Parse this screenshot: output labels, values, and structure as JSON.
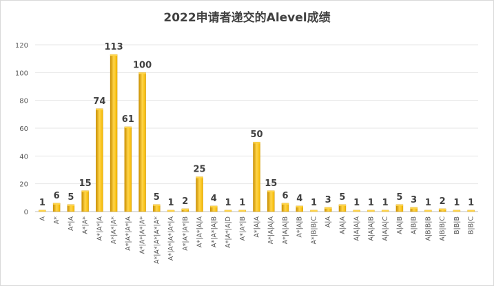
{
  "chart_data": {
    "type": "bar",
    "title": "2022申请者递交的Alevel成绩",
    "xlabel": "",
    "ylabel": "",
    "ylim": [
      0,
      120
    ],
    "yticks": [
      0,
      20,
      40,
      60,
      80,
      100,
      120
    ],
    "grid": true,
    "legend": "none",
    "bar_color": "#f5b800",
    "bar_color_light": "#ffd54a",
    "bar_color_dark": "#c98f00",
    "categories": [
      "A",
      "A*",
      "A*|A",
      "A*|A*",
      "A*|A*|A",
      "A*|A*|A*",
      "A*|A*|A*|A",
      "A*|A*|A*|A*",
      "A*|A*|A*|A*|A*",
      "A*|A*|A*|A*|A",
      "A*|A*|A*|B",
      "A*|A*|A|A",
      "A*|A*|A|B",
      "A*|A*|A|D",
      "A*|A*|B",
      "A*|A|A",
      "A*|A|A|A",
      "A*|A|A|B",
      "A*|A|B",
      "A*|B|B|C",
      "A|A",
      "A|A|A",
      "A|A|A|A",
      "A|A|A|B",
      "A|A|A|C",
      "A|A|B",
      "A|B|B",
      "A|B|B|B",
      "A|B|B|C",
      "B|B|B",
      "B|B|C"
    ],
    "values": [
      1,
      6,
      5,
      15,
      74,
      113,
      61,
      100,
      5,
      1,
      2,
      25,
      4,
      1,
      1,
      50,
      15,
      6,
      4,
      1,
      3,
      5,
      1,
      1,
      1,
      5,
      3,
      1,
      2,
      1,
      1
    ]
  }
}
